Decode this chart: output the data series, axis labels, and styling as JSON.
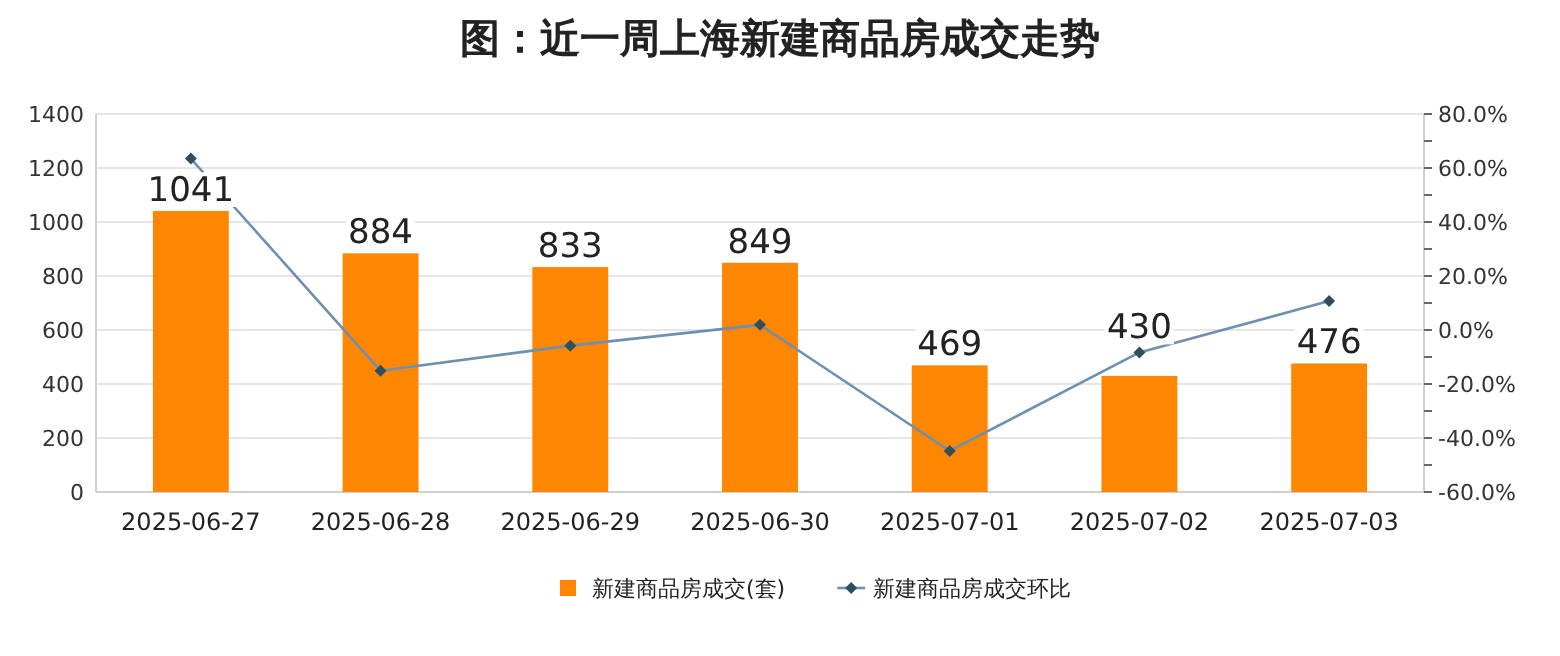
{
  "chart_data": {
    "type": "bar",
    "title": "图：近一周上海新建商品房成交走势",
    "categories": [
      "2025-06-27",
      "2025-06-28",
      "2025-06-29",
      "2025-06-30",
      "2025-07-01",
      "2025-07-02",
      "2025-07-03"
    ],
    "series": [
      {
        "name": "新建商品房成交(套)",
        "color": "#ff8600",
        "values": [
          1041,
          884,
          833,
          849,
          469,
          430,
          476
        ],
        "data_labels": true
      },
      {
        "name": "新建商品房成交环比",
        "type": "line",
        "axis": "y2",
        "color": "#6f8fb0",
        "marker": "diamond",
        "values": [
          63.5,
          -15.1,
          -5.8,
          1.9,
          -44.8,
          -8.3,
          10.7
        ]
      }
    ],
    "ylim": [
      0,
      1400
    ],
    "yticks": [
      0,
      200,
      400,
      600,
      800,
      1000,
      1200,
      1400
    ],
    "y2lim": [
      -60,
      80
    ],
    "y2ticks": [
      {
        "value": -60,
        "label": "-60.0%"
      },
      {
        "value": -50,
        "label": null
      },
      {
        "value": -40,
        "label": "-40.0%"
      },
      {
        "value": -30,
        "label": null
      },
      {
        "value": -20,
        "label": "-20.0%"
      },
      {
        "value": -10,
        "label": null
      },
      {
        "value": 0,
        "label": "0.0%"
      },
      {
        "value": 10,
        "label": null
      },
      {
        "value": 20,
        "label": "20.0%"
      },
      {
        "value": 30,
        "label": null
      },
      {
        "value": 40,
        "label": "40.0%"
      },
      {
        "value": 50,
        "label": null
      },
      {
        "value": 60,
        "label": "60.0%"
      },
      {
        "value": 70,
        "label": null
      },
      {
        "value": 80,
        "label": "80.0%"
      }
    ],
    "grid": "y",
    "legend": "bottom"
  }
}
